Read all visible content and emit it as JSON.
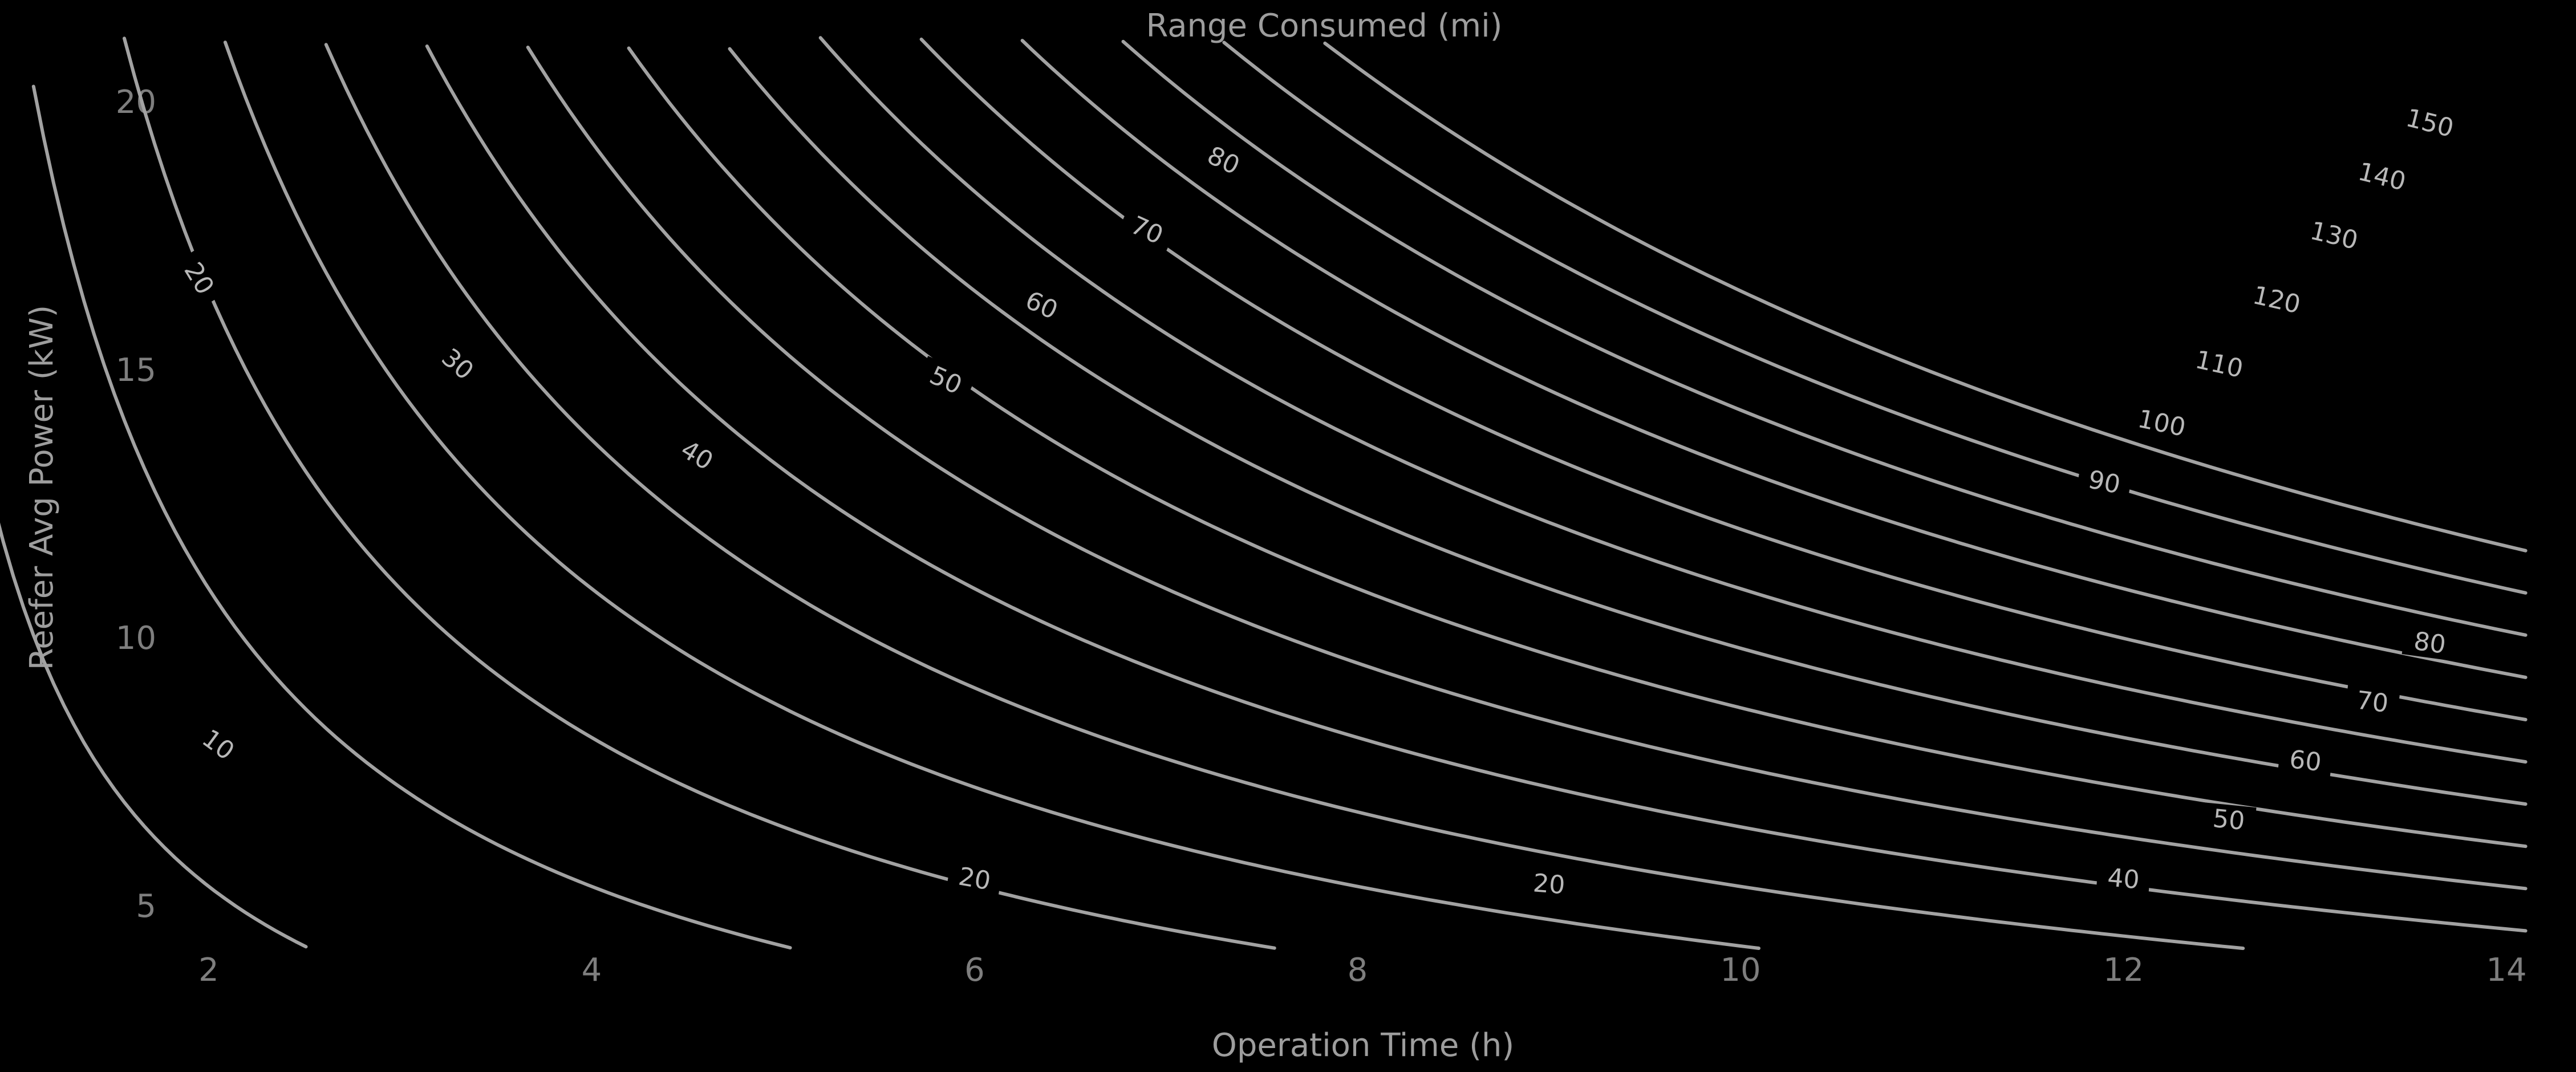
{
  "chart_data": {
    "type": "contour",
    "title": "Range Consumed (mi)",
    "xlabel": "Operation Time (h)",
    "ylabel": "Reefer Avg Power (kW)",
    "xlim": [
      0.4,
      14.1
    ],
    "ylim": [
      4.2,
      21.2
    ],
    "xticks": [
      2,
      4,
      6,
      8,
      10,
      12,
      14
    ],
    "yticks": [
      5,
      10,
      15,
      20
    ],
    "grid": false,
    "levels": [
      10,
      20,
      30,
      40,
      50,
      60,
      70,
      80,
      90,
      100,
      110,
      120,
      130,
      140,
      150
    ],
    "level_labels": [
      {
        "level": 10,
        "label": "10",
        "at": [
          2.05,
          8.0
        ]
      },
      {
        "level": 20,
        "label": "20",
        "at": [
          1.95,
          16.7
        ]
      },
      {
        "level": 20,
        "label": "20",
        "at": [
          6.0,
          5.5
        ]
      },
      {
        "level": 20,
        "label": "20",
        "at": [
          9.0,
          5.4
        ]
      },
      {
        "level": 30,
        "label": "30",
        "at": [
          3.3,
          15.1
        ]
      },
      {
        "level": 40,
        "label": "40",
        "at": [
          4.55,
          13.4
        ]
      },
      {
        "level": 40,
        "label": "40",
        "at": [
          12.0,
          5.5
        ]
      },
      {
        "level": 50,
        "label": "50",
        "at": [
          5.85,
          14.8
        ]
      },
      {
        "level": 50,
        "label": "50",
        "at": [
          12.55,
          6.6
        ]
      },
      {
        "level": 60,
        "label": "60",
        "at": [
          6.35,
          16.2
        ]
      },
      {
        "level": 60,
        "label": "60",
        "at": [
          12.95,
          7.7
        ]
      },
      {
        "level": 70,
        "label": "70",
        "at": [
          6.9,
          17.6
        ]
      },
      {
        "level": 70,
        "label": "70",
        "at": [
          13.3,
          8.8
        ]
      },
      {
        "level": 80,
        "label": "80",
        "at": [
          7.3,
          18.9
        ]
      },
      {
        "level": 80,
        "label": "80",
        "at": [
          13.6,
          9.9
        ]
      },
      {
        "level": 90,
        "label": "90",
        "at": [
          11.9,
          12.9
        ]
      },
      {
        "level": 100,
        "label": "100",
        "at": [
          12.2,
          14.0
        ]
      },
      {
        "level": 110,
        "label": "110",
        "at": [
          12.5,
          15.1
        ]
      },
      {
        "level": 120,
        "label": "120",
        "at": [
          12.8,
          16.3
        ]
      },
      {
        "level": 130,
        "label": "130",
        "at": [
          13.1,
          17.5
        ]
      },
      {
        "level": 140,
        "label": "140",
        "at": [
          13.35,
          18.6
        ]
      },
      {
        "level": 150,
        "label": "150",
        "at": [
          13.6,
          19.6
        ]
      }
    ]
  }
}
